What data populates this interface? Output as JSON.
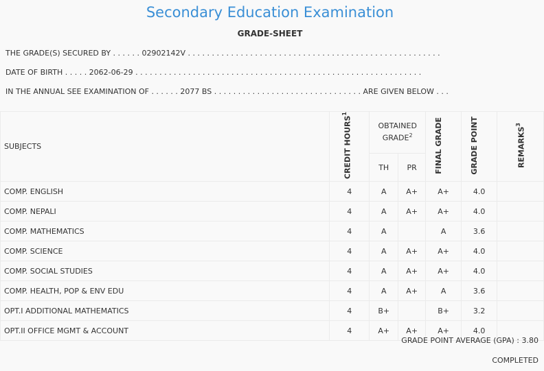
{
  "title": "Secondary Education Examination",
  "subtitle": "GRADE-SHEET",
  "info": {
    "line1": "THE GRADE(S) SECURED BY . . . . . . 02902142V . . . . . . . . . . . . . . . . . . . . . . . . . . . . . . . . . . . . . . . . . . . . . . . . . . . . .",
    "line2": "DATE OF BIRTH . . . . . 2062-06-29 . . . . . . . . . . . . . . . . . . . . . . . . . . . . . . . . . . . . . . . . . . . . . . . . . . . . . . . . . . . .",
    "line3": "IN THE ANNUAL SEE EXAMINATION OF . . . . . . 2077 BS . . . . . . . . . . . . . . . . . . . . . . . . . . . . . . . ARE GIVEN BELOW . . ."
  },
  "headers": {
    "subjects": "SUBJECTS",
    "credit_hours": "CREDIT HOURS",
    "credit_sup": "1",
    "obtained": "OBTAINED GRADE",
    "obtained_sup": "2",
    "th": "TH",
    "pr": "PR",
    "final": "FINAL GRADE",
    "point": "GRADE POINT",
    "remarks": "REMARKS",
    "remarks_sup": "3"
  },
  "rows": [
    {
      "subject": "COMP. ENGLISH",
      "credit": "4",
      "th": "A",
      "pr": "A+",
      "final": "A+",
      "point": "4.0",
      "remarks": ""
    },
    {
      "subject": "COMP. NEPALI",
      "credit": "4",
      "th": "A",
      "pr": "A+",
      "final": "A+",
      "point": "4.0",
      "remarks": ""
    },
    {
      "subject": "COMP. MATHEMATICS",
      "credit": "4",
      "th": "A",
      "pr": "",
      "final": "A",
      "point": "3.6",
      "remarks": ""
    },
    {
      "subject": "COMP. SCIENCE",
      "credit": "4",
      "th": "A",
      "pr": "A+",
      "final": "A+",
      "point": "4.0",
      "remarks": ""
    },
    {
      "subject": "COMP. SOCIAL STUDIES",
      "credit": "4",
      "th": "A",
      "pr": "A+",
      "final": "A+",
      "point": "4.0",
      "remarks": ""
    },
    {
      "subject": "COMP. HEALTH, POP & ENV EDU",
      "credit": "4",
      "th": "A",
      "pr": "A+",
      "final": "A",
      "point": "3.6",
      "remarks": ""
    },
    {
      "subject": "OPT.I ADDITIONAL MATHEMATICS",
      "credit": "4",
      "th": "B+",
      "pr": "",
      "final": "B+",
      "point": "3.2",
      "remarks": ""
    },
    {
      "subject": "OPT.II OFFICE MGMT & ACCOUNT",
      "credit": "4",
      "th": "A+",
      "pr": "A+",
      "final": "A+",
      "point": "4.0",
      "remarks": ""
    }
  ],
  "gpa": "GRADE POINT AVERAGE (GPA) : 3.80",
  "status": "COMPLETED"
}
